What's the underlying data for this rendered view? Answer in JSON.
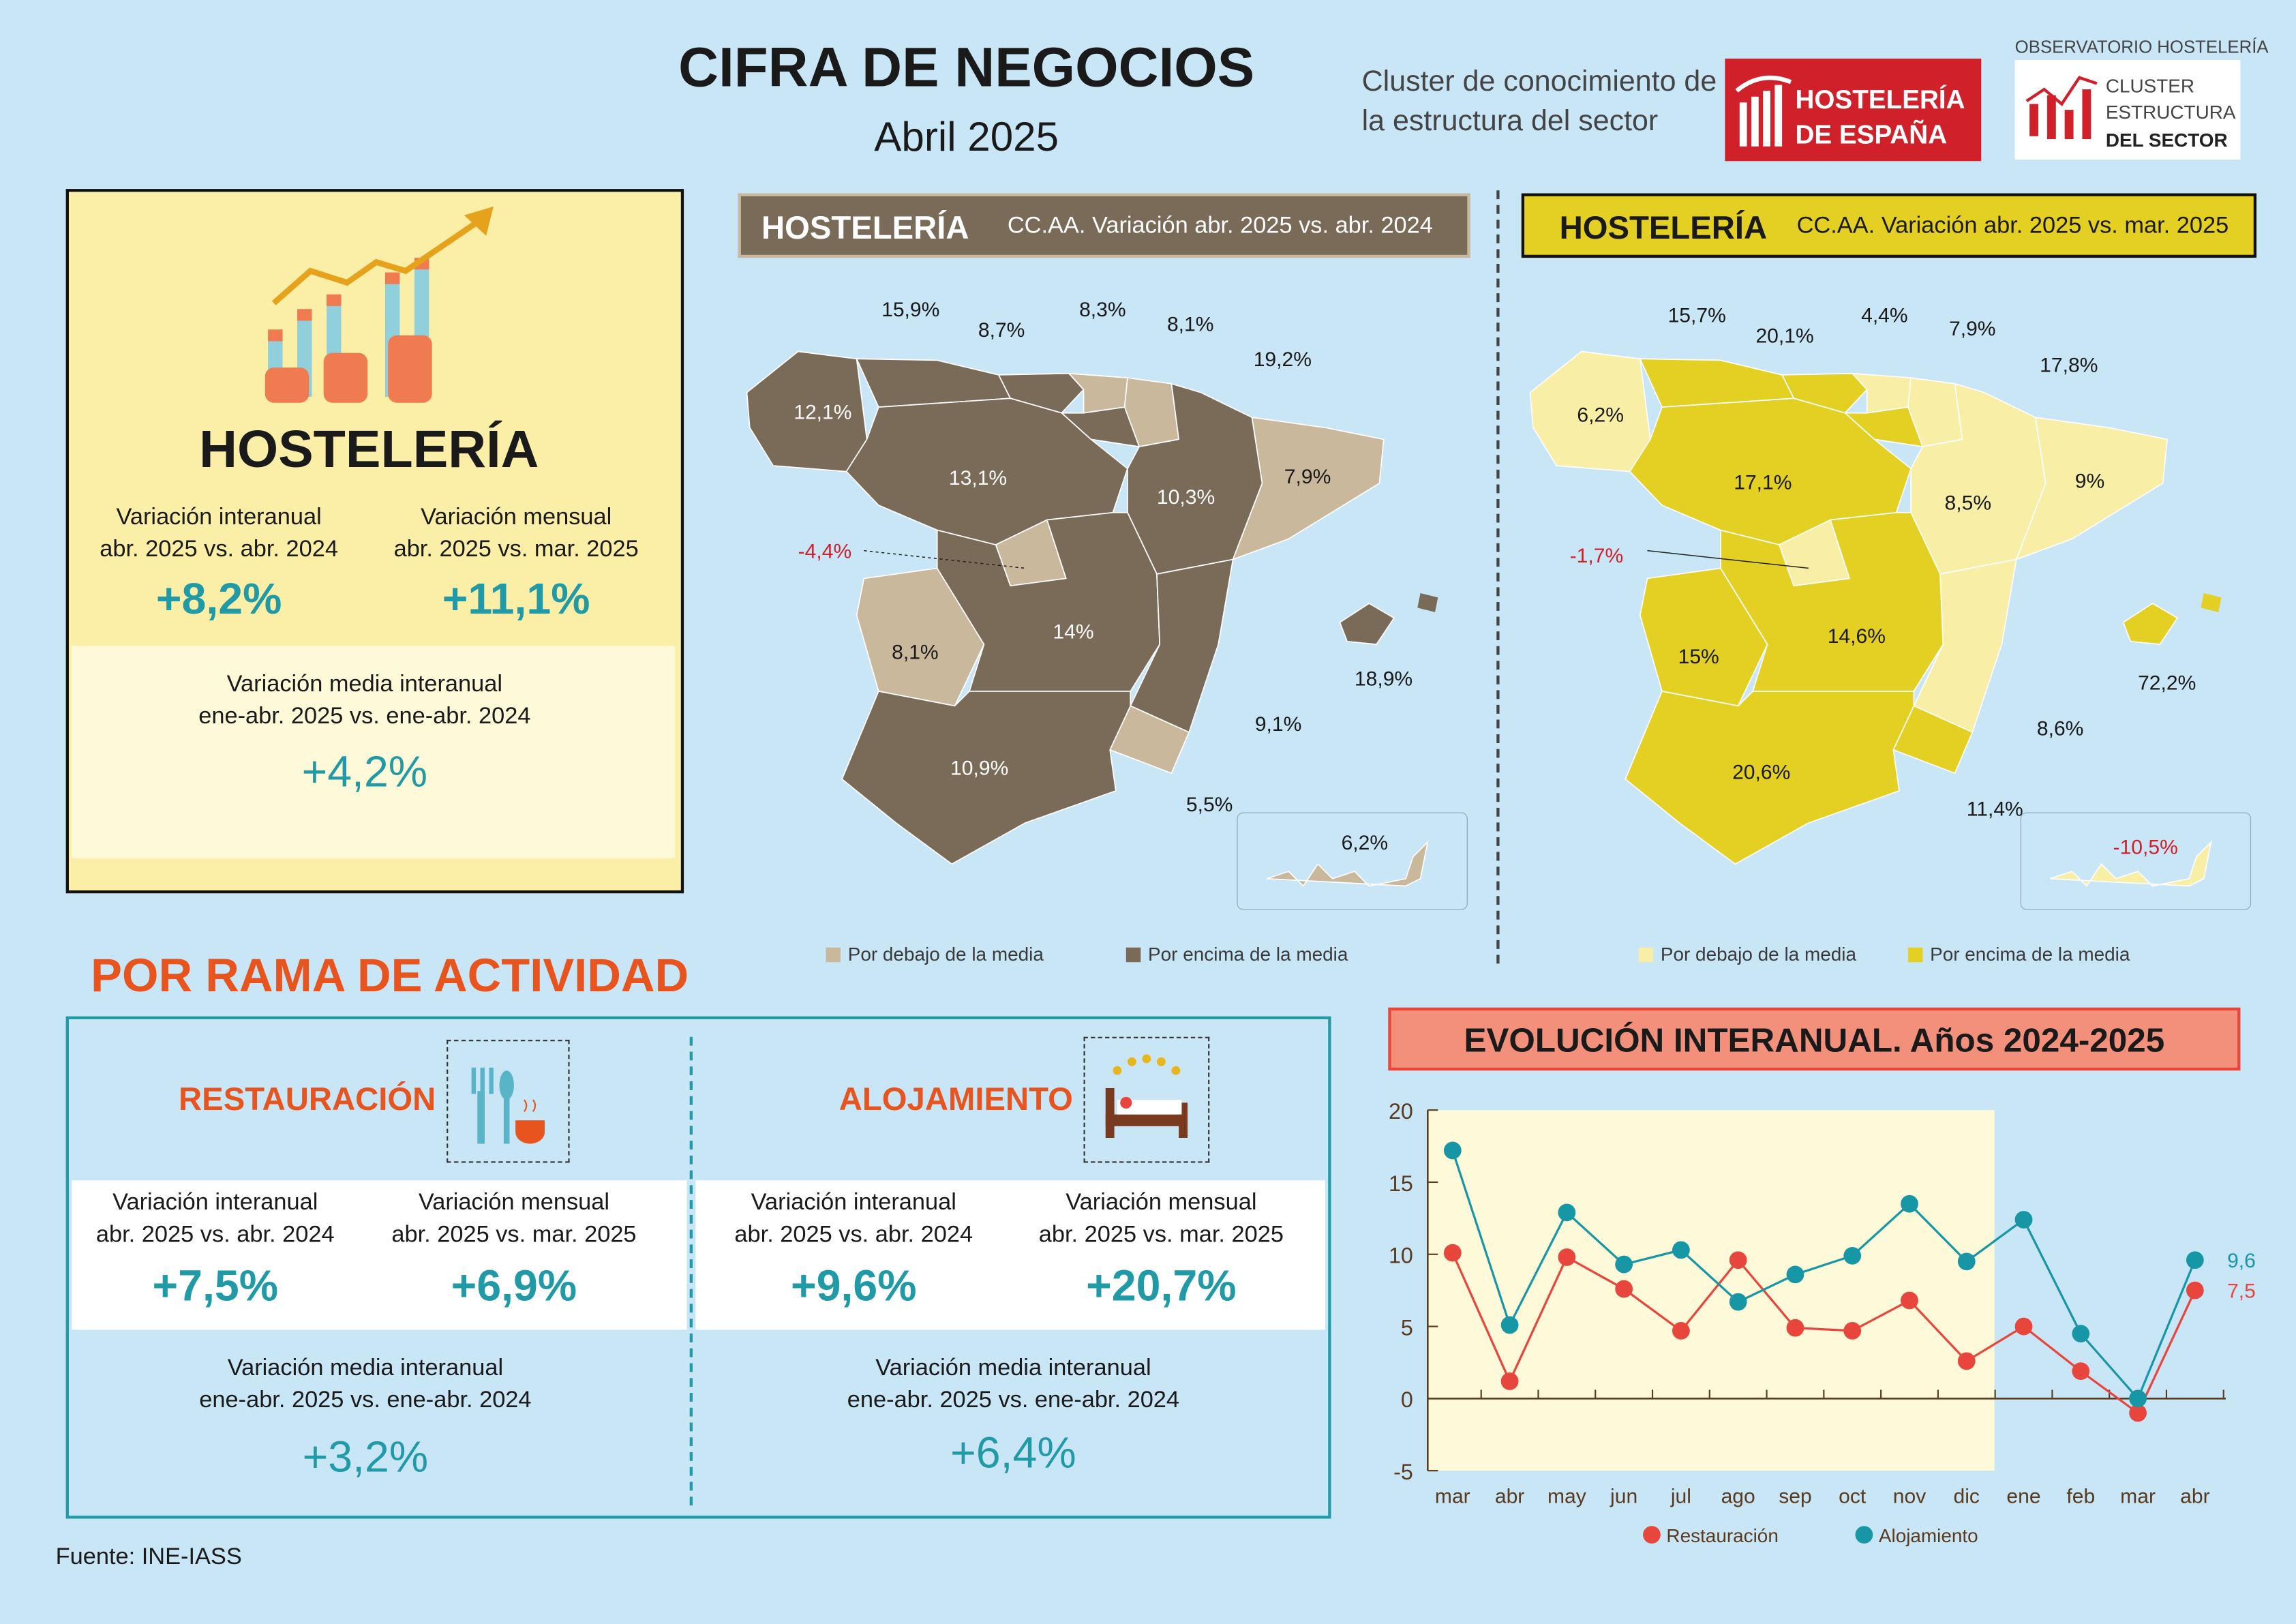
{
  "header": {
    "title": "CIFRA DE NEGOCIOS",
    "subtitle": "Abril 2025",
    "cluster_text_1": "Cluster de conocimiento de",
    "cluster_text_2": "la estructura del sector",
    "logo_hosteleria": "HOSTELERÍA DE ESPAÑA",
    "observatorio": "OBSERVATORIO HOSTELERÍA",
    "logo_cluster": "CLUSTER ESTRUCTURA DEL SECTOR"
  },
  "summary": {
    "title": "HOSTELERÍA",
    "interanual_label_1": "Variación interanual",
    "interanual_label_2": "abr. 2025 vs. abr. 2024",
    "interanual_value": "+8,2%",
    "mensual_label_1": "Variación mensual",
    "mensual_label_2": "abr. 2025 vs. mar. 2025",
    "mensual_value": "+11,1%",
    "media_label_1": "Variación media interanual",
    "media_label_2": "ene-abr. 2025 vs. ene-abr. 2024",
    "media_value": "+4,2%"
  },
  "colors": {
    "map1_above": "#7a6a58",
    "map1_below": "#c9b89c",
    "map2_above": "#e4cf23",
    "map2_below": "#f8eea6",
    "restauracion": "#e8453c",
    "alojamiento": "#1797a6",
    "accent_orange": "#e8541e",
    "teal": "#1f9aa6"
  },
  "map1": {
    "title": "HOSTELERÍA",
    "subtitle": "CC.AA. Variación abr. 2025 vs. abr. 2024",
    "legend_below": "Por debajo de la media",
    "legend_above": "Por encima de la media",
    "regions": {
      "galicia": {
        "value": "12,1%",
        "cat": "above"
      },
      "asturias": {
        "value": "15,9%",
        "cat": "above"
      },
      "cantabria": {
        "value": "8,7%",
        "cat": "above"
      },
      "pais_vasco": {
        "value": "8,3%",
        "cat": "below"
      },
      "navarra": {
        "value": "8,1%",
        "cat": "below"
      },
      "la_rioja": {
        "value": "19,2%",
        "cat": "above"
      },
      "aragon": {
        "value": "10,3%",
        "cat": "above"
      },
      "cataluna": {
        "value": "7,9%",
        "cat": "below"
      },
      "castilla_leon": {
        "value": "13,1%",
        "cat": "above"
      },
      "madrid": {
        "value": "-4,4%",
        "cat": "below"
      },
      "extremadura": {
        "value": "8,1%",
        "cat": "below"
      },
      "castilla_la_mancha": {
        "value": "14%",
        "cat": "above"
      },
      "valencia": {
        "value": "9,1%",
        "cat": "above"
      },
      "murcia": {
        "value": "5,5%",
        "cat": "below"
      },
      "andalucia": {
        "value": "10,9%",
        "cat": "above"
      },
      "baleares": {
        "value": "18,9%",
        "cat": "above"
      },
      "canarias": {
        "value": "6,2%",
        "cat": "below"
      }
    }
  },
  "map2": {
    "title": "HOSTELERÍA",
    "subtitle": "CC.AA. Variación abr. 2025 vs. mar. 2025",
    "legend_below": "Por debajo de la media",
    "legend_above": "Por encima de la media",
    "regions": {
      "galicia": {
        "value": "6,2%",
        "cat": "below"
      },
      "asturias": {
        "value": "15,7%",
        "cat": "above"
      },
      "cantabria": {
        "value": "20,1%",
        "cat": "above"
      },
      "pais_vasco": {
        "value": "4,4%",
        "cat": "below"
      },
      "navarra": {
        "value": "7,9%",
        "cat": "below"
      },
      "la_rioja": {
        "value": "17,8%",
        "cat": "above"
      },
      "aragon": {
        "value": "8,5%",
        "cat": "below"
      },
      "cataluna": {
        "value": "9%",
        "cat": "below"
      },
      "castilla_leon": {
        "value": "17,1%",
        "cat": "above"
      },
      "madrid": {
        "value": "-1,7%",
        "cat": "below"
      },
      "extremadura": {
        "value": "15%",
        "cat": "above"
      },
      "castilla_la_mancha": {
        "value": "14,6%",
        "cat": "above"
      },
      "valencia": {
        "value": "8,6%",
        "cat": "below"
      },
      "murcia": {
        "value": "11,4%",
        "cat": "above"
      },
      "andalucia": {
        "value": "20,6%",
        "cat": "above"
      },
      "baleares": {
        "value": "72,2%",
        "cat": "above"
      },
      "canarias": {
        "value": "-10,5%",
        "cat": "below"
      }
    }
  },
  "rama": {
    "title": "POR RAMA DE ACTIVIDAD",
    "restauracion": {
      "title": "RESTAURACIÓN",
      "interanual_label_1": "Variación interanual",
      "interanual_label_2": "abr. 2025 vs. abr. 2024",
      "interanual_value": "+7,5%",
      "mensual_label_1": "Variación mensual",
      "mensual_label_2": "abr. 2025 vs. mar. 2025",
      "mensual_value": "+6,9%",
      "media_label_1": "Variación media interanual",
      "media_label_2": "ene-abr. 2025 vs. ene-abr. 2024",
      "media_value": "+3,2%"
    },
    "alojamiento": {
      "title": "ALOJAMIENTO",
      "interanual_label_1": "Variación interanual",
      "interanual_label_2": "abr. 2025 vs. abr. 2024",
      "interanual_value": "+9,6%",
      "mensual_label_1": "Variación mensual",
      "mensual_label_2": "abr. 2025 vs. mar. 2025",
      "mensual_value": "+20,7%",
      "media_label_1": "Variación media interanual",
      "media_label_2": "ene-abr. 2025 vs. ene-abr. 2024",
      "media_value": "+6,4%"
    }
  },
  "chart_data": {
    "type": "line",
    "title": "EVOLUCIÓN INTERANUAL. Años 2024-2025",
    "categories": [
      "mar",
      "abr",
      "may",
      "jun",
      "jul",
      "ago",
      "sep",
      "oct",
      "nov",
      "dic",
      "ene",
      "feb",
      "mar",
      "abr"
    ],
    "ylim": [
      -5,
      20
    ],
    "yticks": [
      "20",
      "15",
      "10",
      "5",
      "0",
      "-5"
    ],
    "legend_position": "bottom",
    "grid": false,
    "series": [
      {
        "name": "Restauración",
        "values": [
          10.1,
          1.2,
          9.8,
          7.6,
          4.7,
          9.6,
          4.9,
          4.7,
          6.8,
          2.6,
          5.0,
          1.9,
          -1.0,
          7.5
        ],
        "end_label": "7,5"
      },
      {
        "name": "Alojamiento",
        "values": [
          17.2,
          5.1,
          12.9,
          9.3,
          10.3,
          6.7,
          8.6,
          9.9,
          13.5,
          9.5,
          12.4,
          4.5,
          0.0,
          9.6
        ],
        "end_label": "9,6"
      }
    ]
  },
  "footer": {
    "source": "Fuente: INE-IASS"
  }
}
